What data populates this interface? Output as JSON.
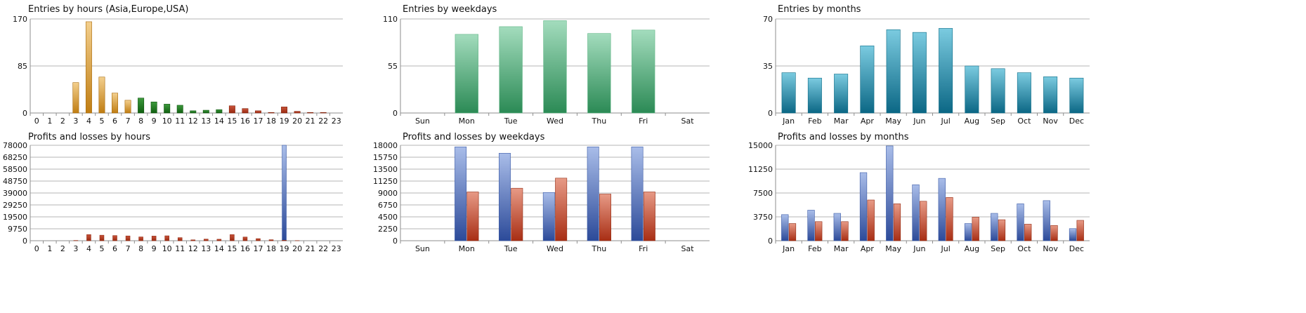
{
  "chart_data": [
    {
      "type": "bar",
      "title": "Entries by hours (Asia,Europe,USA)",
      "categories": [
        "0",
        "1",
        "2",
        "3",
        "4",
        "5",
        "6",
        "7",
        "8",
        "9",
        "10",
        "11",
        "12",
        "13",
        "14",
        "15",
        "16",
        "17",
        "18",
        "19",
        "20",
        "21",
        "22",
        "23"
      ],
      "values": [
        0,
        0,
        0,
        55,
        165,
        65,
        36,
        23,
        27,
        20,
        16,
        14,
        4,
        5,
        6,
        13,
        8,
        4,
        1,
        11,
        3,
        1,
        1,
        0
      ],
      "ylim": [
        0,
        170
      ],
      "yticks": [
        "0",
        "85",
        "170"
      ]
    },
    {
      "type": "bar",
      "title": "Entries by weekdays",
      "categories": [
        "Sun",
        "Mon",
        "Tue",
        "Wed",
        "Thu",
        "Fri",
        "Sat"
      ],
      "values": [
        0,
        92,
        101,
        108,
        93,
        97,
        0
      ],
      "ylim": [
        0,
        110
      ],
      "yticks": [
        "0",
        "55",
        "110"
      ]
    },
    {
      "type": "bar",
      "title": "Entries by months",
      "categories": [
        "Jan",
        "Feb",
        "Mar",
        "Apr",
        "May",
        "Jun",
        "Jul",
        "Aug",
        "Sep",
        "Oct",
        "Nov",
        "Dec"
      ],
      "values": [
        30,
        26,
        29,
        50,
        62,
        60,
        63,
        35,
        33,
        30,
        27,
        26
      ],
      "ylim": [
        0,
        70
      ],
      "yticks": [
        "0",
        "35",
        "70"
      ]
    },
    {
      "type": "bar",
      "title": "Profits and losses by hours",
      "categories": [
        "0",
        "1",
        "2",
        "3",
        "4",
        "5",
        "6",
        "7",
        "8",
        "9",
        "10",
        "11",
        "12",
        "13",
        "14",
        "15",
        "16",
        "17",
        "18",
        "19",
        "20",
        "21",
        "22",
        "23"
      ],
      "series": [
        {
          "values": [
            0,
            0,
            0,
            0,
            0,
            0,
            0,
            0,
            0,
            0,
            0,
            0,
            0,
            0,
            0,
            0,
            0,
            0,
            0,
            78000,
            0,
            0,
            0,
            0
          ]
        },
        {
          "values": [
            0,
            0,
            0,
            200,
            5000,
            4500,
            4200,
            3900,
            3100,
            3800,
            4000,
            2500,
            700,
            1300,
            1200,
            5000,
            3000,
            1700,
            800,
            400,
            100,
            0,
            0,
            0
          ]
        }
      ],
      "ylim": [
        0,
        78000
      ],
      "yticks": [
        "0",
        "9750",
        "19500",
        "29250",
        "39000",
        "48750",
        "58500",
        "68250",
        "78000"
      ]
    },
    {
      "type": "bar",
      "title": "Profits and losses by weekdays",
      "categories": [
        "Sun",
        "Mon",
        "Tue",
        "Wed",
        "Thu",
        "Fri",
        "Sat"
      ],
      "series": [
        {
          "values": [
            0,
            17700,
            16500,
            9100,
            17700,
            17700,
            0
          ]
        },
        {
          "values": [
            0,
            9200,
            9900,
            11800,
            8800,
            9200,
            0
          ]
        }
      ],
      "ylim": [
        0,
        18000
      ],
      "yticks": [
        "0",
        "2250",
        "4500",
        "6750",
        "9000",
        "11250",
        "13500",
        "15750",
        "18000"
      ]
    },
    {
      "type": "bar",
      "title": "Profits and losses by months",
      "categories": [
        "Jan",
        "Feb",
        "Mar",
        "Apr",
        "May",
        "Jun",
        "Jul",
        "Aug",
        "Sep",
        "Oct",
        "Nov",
        "Dec"
      ],
      "series": [
        {
          "values": [
            4100,
            4800,
            4300,
            10700,
            14900,
            8800,
            9800,
            2700,
            4300,
            5800,
            6300,
            1900
          ]
        },
        {
          "values": [
            2700,
            3000,
            3000,
            6400,
            5800,
            6200,
            6800,
            3700,
            3300,
            2600,
            2400,
            3200
          ]
        }
      ],
      "ylim": [
        0,
        15000
      ],
      "yticks": [
        "0",
        "3750",
        "7500",
        "11250",
        "15000"
      ]
    }
  ],
  "colors": {
    "orange": "#c98b1e",
    "green": "#1d7a1d",
    "red": "#b0361c",
    "mint": "#7fc79e",
    "teal": "#1f849d",
    "blue": "#4466b0",
    "grid": "#b5b5b5",
    "text": "#111111"
  }
}
